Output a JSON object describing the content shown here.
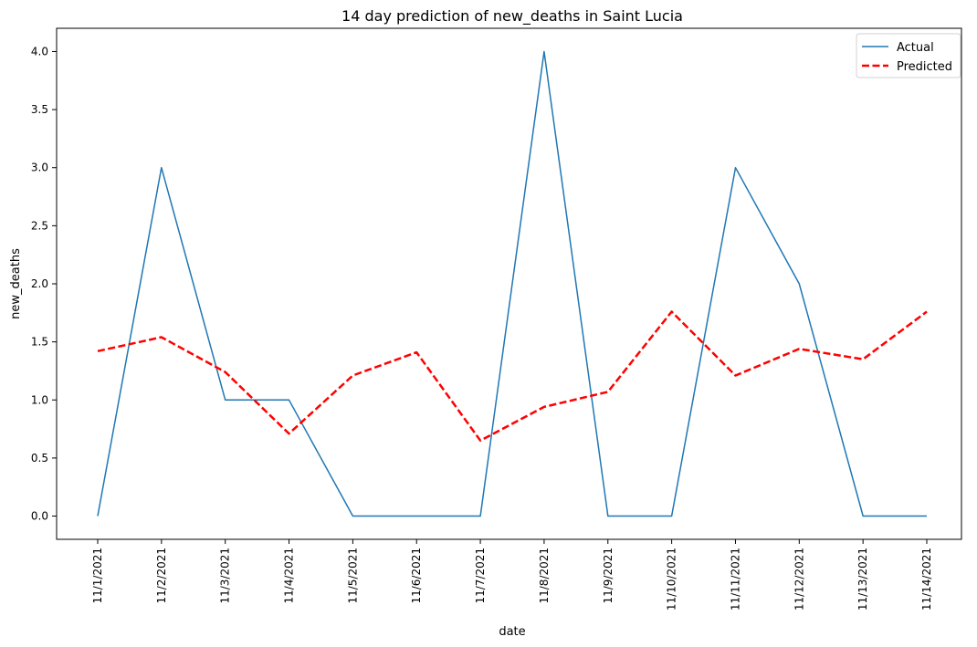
{
  "chart_data": {
    "type": "line",
    "title": "14 day prediction of new_deaths in Saint Lucia",
    "xlabel": "date",
    "ylabel": "new_deaths",
    "categories": [
      "11/1/2021",
      "11/2/2021",
      "11/3/2021",
      "11/4/2021",
      "11/5/2021",
      "11/6/2021",
      "11/7/2021",
      "11/8/2021",
      "11/9/2021",
      "11/10/2021",
      "11/11/2021",
      "11/12/2021",
      "11/13/2021",
      "11/14/2021"
    ],
    "series": [
      {
        "name": "Actual",
        "color": "#1f77b4",
        "style": "solid",
        "values": [
          0,
          3,
          1,
          1,
          0,
          0,
          0,
          4,
          0,
          0,
          3,
          2,
          0,
          0
        ]
      },
      {
        "name": "Predicted",
        "color": "#ff0000",
        "style": "dashed",
        "values": [
          1.42,
          1.54,
          1.24,
          0.71,
          1.21,
          1.41,
          0.65,
          0.94,
          1.07,
          1.76,
          1.21,
          1.44,
          1.35,
          1.76
        ]
      }
    ],
    "ylim": [
      -0.2,
      4.2
    ],
    "yticks": [
      0.0,
      0.5,
      1.0,
      1.5,
      2.0,
      2.5,
      3.0,
      3.5,
      4.0
    ],
    "ytick_labels": [
      "0.0",
      "0.5",
      "1.0",
      "1.5",
      "2.0",
      "2.5",
      "3.0",
      "3.5",
      "4.0"
    ],
    "grid": false,
    "legend_position": "top-right"
  }
}
